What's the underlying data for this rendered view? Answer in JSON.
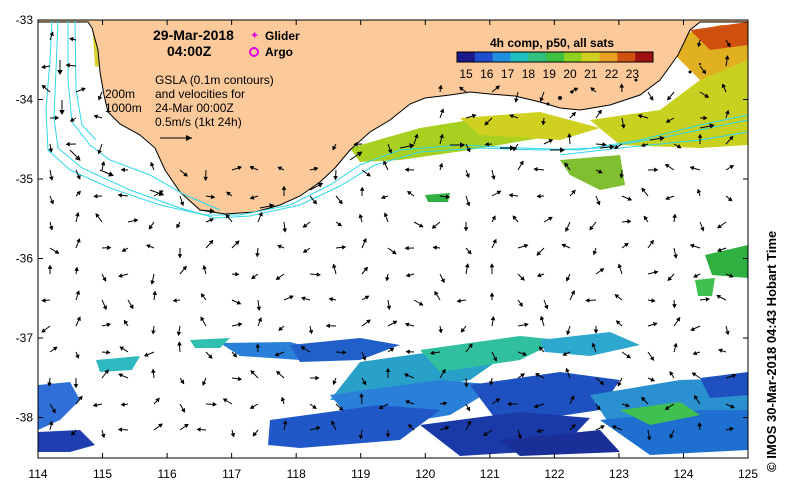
{
  "map": {
    "date": "29-Mar-2018",
    "time": "04:00Z",
    "legend": {
      "glider": "Glider",
      "argo": "Argo",
      "glider_color": "#e000e0",
      "argo_color": "#e000e0"
    },
    "gsla_text": [
      "GSLA (0.1m contours)",
      "and velocities for",
      "24-Mar 00:00Z",
      "0.5m/s (1kt 24h)"
    ],
    "isobaths": [
      "200m",
      "1000m"
    ],
    "colorbar": {
      "title": "4h comp, p50, all sats",
      "ticks": [
        "15",
        "16",
        "17",
        "18",
        "19",
        "20",
        "21",
        "22",
        "23"
      ],
      "colors": [
        "#1a1a8c",
        "#1f4fd0",
        "#1f8fe0",
        "#20c0c0",
        "#30c080",
        "#40c040",
        "#90d020",
        "#d0d020",
        "#e8a020",
        "#d05010",
        "#a01010"
      ]
    },
    "lon_ticks": [
      "114",
      "115",
      "116",
      "117",
      "118",
      "119",
      "120",
      "121",
      "122",
      "123",
      "124",
      "125"
    ],
    "lat_ticks": [
      "-33",
      "-34",
      "-35",
      "-36",
      "-37",
      "-38"
    ],
    "credit": "IMOS 30-Mar-2018 04:43 Hobart Time",
    "copyright": "©",
    "colors": {
      "land": "#fbc99a",
      "coast": "#000000",
      "current": "#30d8e8",
      "arrow": "#000000"
    }
  }
}
